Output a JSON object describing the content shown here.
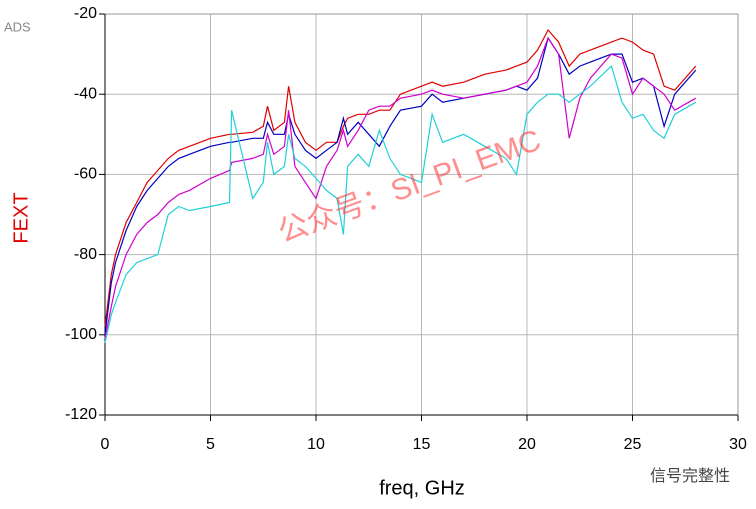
{
  "chart_data": {
    "type": "line",
    "x_label": "freq, GHz",
    "y_label": "FEXT",
    "corner_label": "ADS",
    "watermark": "公众号：SI_PI_EMC",
    "footer": "信号完整性",
    "x": [
      0,
      0.3,
      0.5,
      1,
      1.5,
      2,
      2.5,
      3,
      3.5,
      4,
      5,
      5.9,
      6,
      7,
      7.5,
      7.7,
      8,
      8.5,
      8.7,
      9,
      9.5,
      10,
      10.5,
      11,
      11.3,
      11.5,
      12,
      12.5,
      13,
      13.5,
      14,
      15,
      15.5,
      16,
      17,
      18,
      19,
      19.5,
      20,
      20.5,
      21,
      21.5,
      22,
      22.5,
      23,
      24,
      24.5,
      25,
      25.5,
      26,
      26.5,
      27,
      28
    ],
    "series": [
      {
        "color": "#e00000",
        "values": [
          -98,
          -85,
          -80,
          -72,
          -67,
          -62,
          -59,
          -56,
          -54,
          -53,
          -51,
          -50,
          -50,
          -49.5,
          -48,
          -43,
          -49,
          -47,
          -38,
          -47,
          -52,
          -54,
          -52,
          -52,
          -48,
          -46,
          -45,
          -45,
          -44,
          -44,
          -40,
          -38,
          -37,
          -38,
          -37,
          -35,
          -34,
          -33,
          -32,
          -29,
          -24,
          -27,
          -33,
          -30,
          -29,
          -27,
          -26,
          -27,
          -29,
          -30,
          -38,
          -39,
          -33
        ]
      },
      {
        "color": "#0000c0",
        "values": [
          -100,
          -87,
          -82,
          -74,
          -68,
          -64,
          -61,
          -58,
          -56,
          -55,
          -53,
          -52,
          -52,
          -51,
          -51,
          -47,
          -50,
          -50,
          -45,
          -50,
          -54,
          -56,
          -54,
          -52,
          -46,
          -50,
          -47,
          -50,
          -53,
          -48,
          -44,
          -43,
          -40,
          -42,
          -41,
          -40,
          -39,
          -38,
          -39,
          -36,
          -26,
          -30,
          -35,
          -33,
          -32,
          -30,
          -30,
          -37,
          -36,
          -38,
          -48,
          -40,
          -34
        ]
      },
      {
        "color": "#d000d0",
        "values": [
          -101,
          -93,
          -88,
          -80,
          -75,
          -72,
          -70,
          -67,
          -65,
          -64,
          -61,
          -59,
          -57,
          -56,
          -55,
          -50,
          -55,
          -53,
          -44,
          -58,
          -62,
          -66,
          -58,
          -54,
          -49,
          -53,
          -49,
          -44,
          -43,
          -43,
          -41,
          -40,
          -39,
          -40,
          -41,
          -40,
          -39,
          -38,
          -37,
          -33,
          -26,
          -30,
          -51,
          -41,
          -36,
          -30,
          -31,
          -40,
          -36,
          -38,
          -40,
          -44,
          -41
        ]
      },
      {
        "color": "#20d0d8",
        "values": [
          -102,
          -95,
          -92,
          -85,
          -82,
          -81,
          -80,
          -70,
          -68,
          -69,
          -68,
          -67,
          -44,
          -66,
          -62,
          -52,
          -60,
          -58,
          -50,
          -56,
          -58,
          -61,
          -64,
          -66,
          -75,
          -58,
          -55,
          -58,
          -49,
          -56,
          -60,
          -62,
          -45,
          -52,
          -50,
          -53,
          -56,
          -60,
          -45,
          -42,
          -40,
          -40,
          -42,
          -40,
          -38,
          -33,
          -42,
          -46,
          -45,
          -49,
          -51,
          -45,
          -42
        ]
      }
    ],
    "xlim": [
      0,
      30
    ],
    "xticks": [
      0,
      5,
      10,
      15,
      20,
      25,
      30
    ],
    "ylim": [
      -120,
      -20
    ],
    "yticks": [
      -120,
      -100,
      -80,
      -60,
      -40,
      -20
    ],
    "grid": true
  }
}
